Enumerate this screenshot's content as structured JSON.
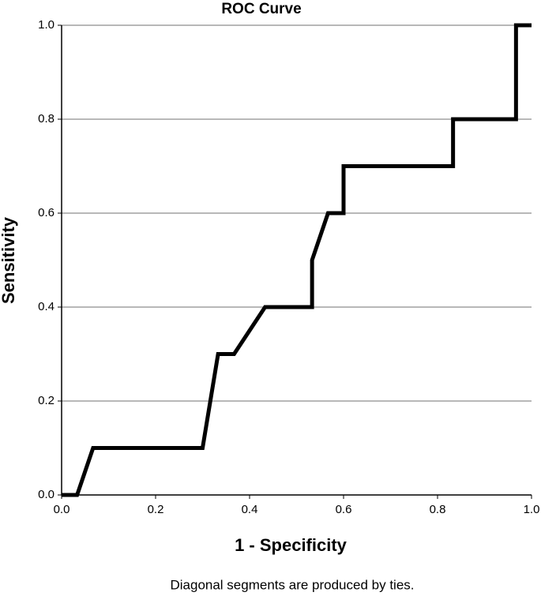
{
  "chart_data": {
    "type": "line",
    "title": "ROC Curve",
    "x_label": "1 - Specificity",
    "y_label": "Sensitivity",
    "note": "Diagonal segments are produced by ties.",
    "series": [
      {
        "color": "#000000",
        "x": [
          0,
          0.033,
          0.067,
          0.3,
          0.333,
          0.367,
          0.433,
          0.533,
          0.533,
          0.567,
          0.6,
          0.6,
          0.833,
          0.833,
          0.967,
          0.967,
          1.0
        ],
        "values": [
          0,
          0,
          0.1,
          0.1,
          0.3,
          0.3,
          0.4,
          0.4,
          0.5,
          0.6,
          0.6,
          0.7,
          0.7,
          0.8,
          0.8,
          1.0,
          1.0
        ]
      }
    ],
    "xlim": [
      0,
      1
    ],
    "ylim": [
      0,
      1
    ],
    "xticks": [
      {
        "value": 0,
        "label": "0.0"
      },
      0.2,
      0.4,
      0.6,
      0.8,
      {
        "value": 1,
        "label": "1.0"
      }
    ],
    "yticks": [
      {
        "value": 0,
        "label": "0.0"
      },
      0.2,
      0.4,
      0.6,
      0.8,
      {
        "value": 1,
        "label": "1.0"
      }
    ],
    "grid": true
  }
}
